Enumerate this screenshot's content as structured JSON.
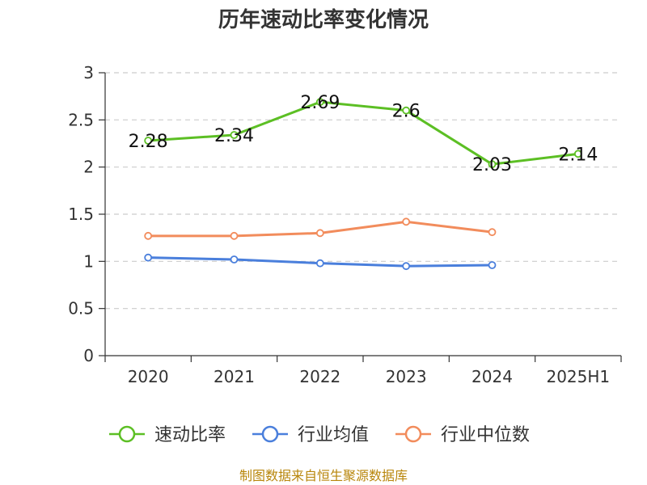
{
  "chart_data": {
    "type": "line",
    "title": "历年速动比率变化情况",
    "categories": [
      "2020",
      "2021",
      "2022",
      "2023",
      "2024",
      "2025H1"
    ],
    "ylim": [
      0,
      3
    ],
    "yticks": [
      "0",
      "0.5",
      "1",
      "1.5",
      "2",
      "2.5",
      "3"
    ],
    "grid": true,
    "legend_position": "bottom",
    "series": [
      {
        "name": "速动比率",
        "color": "#5cbf24",
        "values": [
          2.28,
          2.34,
          2.69,
          2.6,
          2.03,
          2.14
        ],
        "labels": [
          "2.28",
          "2.34",
          "2.69",
          "2.6",
          "2.03",
          "2.14"
        ]
      },
      {
        "name": "行业均值",
        "color": "#4a7fdc",
        "values": [
          1.04,
          1.02,
          0.98,
          0.95,
          0.96,
          null
        ]
      },
      {
        "name": "行业中位数",
        "color": "#f28c5c",
        "values": [
          1.27,
          1.27,
          1.3,
          1.42,
          1.31,
          null
        ]
      }
    ],
    "source": "制图数据来自恒生聚源数据库"
  }
}
